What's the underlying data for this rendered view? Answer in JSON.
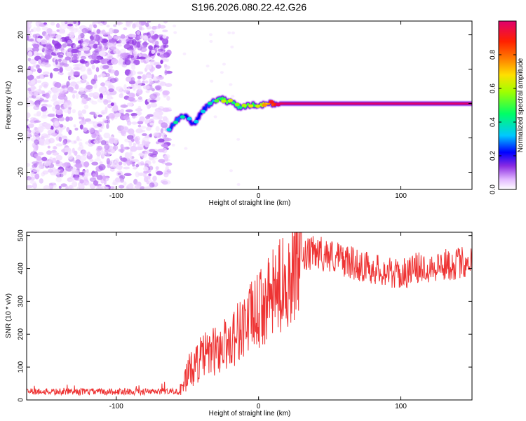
{
  "title": "S196.2026.080.22.42.G26",
  "chart_data": [
    {
      "type": "heatmap",
      "xlabel": "Height of straight line (km)",
      "ylabel": "Frequency (Hz)",
      "xlim": [
        -163,
        150
      ],
      "ylim": [
        -25,
        24
      ],
      "xticks": [
        -100,
        0,
        100
      ],
      "yticks": [
        -20,
        -10,
        0,
        10,
        20
      ],
      "colorbar": {
        "label": "Normalized spectral amplitude",
        "range": [
          0,
          1
        ],
        "ticks": [
          "0.0",
          "0.2",
          "0.4",
          "0.6",
          "0.8"
        ],
        "tick_values": [
          0,
          0.2,
          0.4,
          0.6,
          0.8
        ],
        "colors": [
          "#ffffff",
          "#e2b8ff",
          "#8a2be2",
          "#0000ff",
          "#00c8ff",
          "#00ff66",
          "#a0ff00",
          "#ffe000",
          "#ff7a00",
          "#ff2000",
          "#e0006e"
        ]
      },
      "noise_region_x": [
        -163,
        -63
      ],
      "ridge": {
        "x": [
          -63,
          -58,
          -54,
          -50,
          -46,
          -42,
          -38,
          -34,
          -30,
          -26,
          -22,
          -18,
          -14,
          -10,
          -6,
          -2,
          2,
          6,
          10,
          14,
          20,
          150
        ],
        "frequency": [
          -8,
          -5,
          -3.5,
          -4,
          -6,
          -4,
          -1.5,
          0,
          1,
          1.5,
          0.5,
          0.5,
          -1,
          -1,
          -0.5,
          -0.5,
          -0.5,
          0,
          0,
          0,
          0,
          0
        ],
        "amplitude": [
          0.3,
          0.35,
          0.35,
          0.3,
          0.28,
          0.3,
          0.3,
          0.35,
          0.42,
          0.5,
          0.55,
          0.5,
          0.45,
          0.5,
          0.55,
          0.5,
          0.6,
          0.7,
          0.85,
          0.95,
          1.0,
          1.0
        ]
      }
    },
    {
      "type": "line",
      "xlabel": "Height of straight line (km)",
      "ylabel": "SNR (10 * v/v)",
      "xlim": [
        -163,
        150
      ],
      "ylim": [
        0,
        510
      ],
      "xticks": [
        -100,
        0,
        100
      ],
      "yticks": [
        0,
        100,
        200,
        300,
        400,
        500
      ],
      "color": "#ee3333",
      "series_trend": {
        "x": [
          -163,
          -55,
          -50,
          -40,
          -30,
          -20,
          -10,
          0,
          10,
          20,
          30,
          40,
          50,
          60,
          70,
          80,
          90,
          100,
          110,
          120,
          130,
          140,
          150
        ],
        "snr": [
          25,
          25,
          80,
          130,
          150,
          180,
          230,
          270,
          320,
          370,
          430,
          450,
          440,
          425,
          410,
          400,
          390,
          380,
          400,
          405,
          410,
          415,
          425
        ]
      }
    }
  ]
}
